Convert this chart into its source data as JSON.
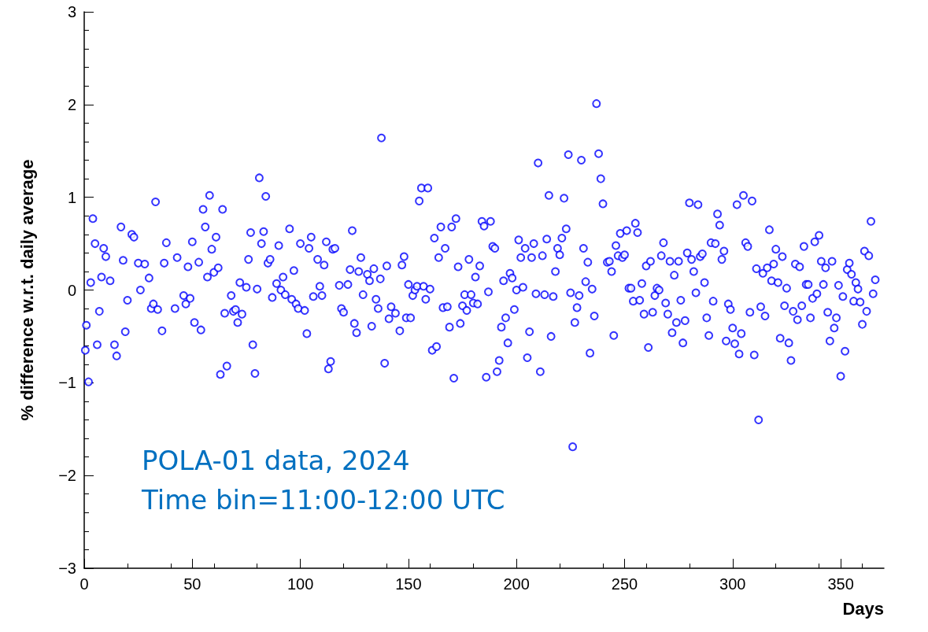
{
  "chart_data": {
    "type": "scatter",
    "xlabel": "Days",
    "ylabel": "% difference w.r.t. daily average",
    "annotations": [
      "POLA-01 data, 2024",
      "Time bin=11:00-12:00 UTC"
    ],
    "xlim": [
      0,
      370
    ],
    "xticks": [
      0,
      50,
      100,
      150,
      200,
      250,
      300,
      350
    ],
    "ylim": [
      -3,
      3
    ],
    "yticks": [
      -3,
      -2,
      -1,
      0,
      1,
      2,
      3
    ],
    "grid": false,
    "marker": "circle",
    "series": [
      {
        "color": "#0000ff",
        "x": [
          0.5,
          1,
          2,
          3,
          4,
          5,
          6,
          7,
          8,
          9,
          10,
          12,
          14,
          15,
          17,
          18,
          19,
          20,
          22,
          23,
          25,
          26,
          28,
          30,
          31,
          32,
          33,
          34,
          36,
          37,
          38,
          42,
          43,
          46,
          47,
          48,
          49,
          50,
          51,
          53,
          54,
          55,
          56,
          57,
          58,
          59,
          60,
          61,
          62,
          63,
          64,
          65,
          66,
          68,
          69,
          70,
          71,
          72,
          73,
          75,
          76,
          77,
          78,
          79,
          80,
          81,
          82,
          83,
          84,
          85,
          86,
          87,
          89,
          90,
          91,
          92,
          93,
          95,
          96,
          97,
          98,
          99,
          100,
          102,
          103,
          104,
          105,
          106,
          108,
          109,
          110,
          111,
          112,
          113,
          114,
          115,
          116,
          118,
          119,
          120,
          122,
          123,
          124,
          125,
          126,
          127,
          128,
          129,
          131,
          132,
          133,
          134,
          135,
          136,
          137,
          137.5,
          139,
          140,
          141,
          142,
          144,
          146,
          147,
          148,
          149,
          150,
          151,
          152,
          153,
          154,
          155,
          156,
          157,
          158,
          159,
          160,
          161,
          162,
          163,
          164,
          165,
          166,
          167,
          168,
          169,
          170,
          171,
          172,
          173,
          174,
          175,
          176,
          177,
          178,
          179,
          180,
          181,
          182,
          183,
          184,
          185,
          186,
          187,
          188,
          189,
          190,
          191,
          192,
          193,
          194,
          195,
          196,
          197,
          198,
          199,
          200,
          201,
          202,
          203,
          204,
          205,
          206,
          207,
          208,
          209,
          210,
          211,
          212,
          213,
          214,
          215,
          216,
          217,
          218,
          219,
          220,
          221,
          222,
          223,
          224,
          225,
          226,
          227,
          228,
          229,
          230,
          231,
          232,
          233,
          234,
          235,
          236,
          237,
          238,
          239,
          240,
          242,
          243,
          244,
          245,
          246,
          247,
          248,
          249,
          250,
          251,
          252,
          253,
          254,
          255,
          256,
          257,
          258,
          259,
          260,
          261,
          262,
          263,
          264,
          265,
          266,
          267,
          268,
          269,
          270,
          271,
          272,
          273,
          274,
          275,
          276,
          277,
          278,
          279,
          280,
          281,
          282,
          283,
          284,
          285,
          286,
          287,
          288,
          289,
          290,
          291,
          292,
          293,
          294,
          295,
          296,
          297,
          298,
          299,
          300,
          301,
          302,
          303,
          304,
          305,
          306,
          307,
          308,
          309,
          310,
          311,
          312,
          313,
          314,
          315,
          316,
          317,
          318,
          319,
          320,
          321,
          322,
          323,
          324,
          325,
          326,
          327,
          328,
          329,
          330,
          331,
          332,
          333,
          334,
          335,
          336,
          337,
          338,
          339,
          340,
          341,
          342,
          343,
          344,
          345,
          346,
          347,
          348,
          349,
          350,
          351,
          352,
          353,
          354,
          355,
          356,
          357,
          358,
          359,
          360,
          361,
          362,
          363,
          364,
          365,
          366
        ],
        "values": [
          -0.65,
          -0.38,
          -0.99,
          0.08,
          0.77,
          0.5,
          -0.59,
          -0.23,
          0.14,
          0.45,
          0.36,
          0.1,
          -0.59,
          -0.71,
          0.68,
          0.32,
          -0.45,
          -0.11,
          0.6,
          0.57,
          0.29,
          0.0,
          0.28,
          0.13,
          -0.2,
          -0.15,
          0.95,
          -0.21,
          -0.44,
          0.29,
          0.51,
          -0.2,
          0.35,
          -0.06,
          -0.15,
          0.25,
          -0.09,
          0.52,
          -0.35,
          0.3,
          -0.43,
          0.87,
          0.68,
          0.14,
          1.02,
          0.44,
          0.19,
          0.57,
          0.24,
          -0.91,
          0.87,
          -0.25,
          -0.82,
          -0.06,
          -0.23,
          -0.21,
          -0.35,
          0.08,
          -0.26,
          0.03,
          0.33,
          0.62,
          -0.59,
          -0.9,
          0.01,
          1.21,
          0.5,
          0.63,
          1.01,
          0.29,
          0.33,
          -0.08,
          0.07,
          0.48,
          0.0,
          0.14,
          -0.05,
          0.66,
          -0.1,
          0.21,
          -0.15,
          -0.2,
          0.5,
          -0.22,
          -0.47,
          0.45,
          0.57,
          -0.07,
          0.33,
          0.04,
          -0.06,
          0.27,
          0.52,
          -0.85,
          -0.77,
          0.44,
          0.45,
          0.05,
          -0.2,
          -0.24,
          0.06,
          0.22,
          0.64,
          -0.36,
          -0.46,
          0.2,
          0.35,
          -0.05,
          0.17,
          0.1,
          -0.39,
          0.23,
          -0.1,
          -0.2,
          0.12,
          1.64,
          -0.79,
          0.26,
          -0.31,
          -0.18,
          -0.25,
          -0.44,
          0.27,
          0.36,
          -0.3,
          0.06,
          -0.3,
          -0.06,
          0.0,
          0.04,
          0.96,
          1.1,
          0.04,
          -0.1,
          1.1,
          0.01,
          -0.65,
          0.56,
          -0.61,
          0.35,
          0.68,
          -0.19,
          0.45,
          -0.18,
          -0.4,
          0.68,
          -0.95,
          0.77,
          0.25,
          -0.36,
          -0.17,
          -0.05,
          -0.22,
          0.33,
          -0.05,
          -0.14,
          0.14,
          -0.15,
          0.26,
          0.74,
          0.69,
          -0.94,
          -0.02,
          0.74,
          0.47,
          0.45,
          -0.88,
          -0.76,
          -0.4,
          0.1,
          -0.3,
          -0.57,
          0.18,
          0.13,
          -0.21,
          0.0,
          0.54,
          0.35,
          0.03,
          0.45,
          -0.73,
          -0.45,
          0.35,
          0.5,
          -0.04,
          1.37,
          -0.88,
          0.37,
          -0.05,
          0.55,
          1.02,
          -0.5,
          -0.07,
          0.2,
          0.45,
          0.38,
          0.56,
          0.99,
          0.66,
          1.46,
          -0.03,
          -1.69,
          -0.35,
          -0.19,
          -0.06,
          1.4,
          0.45,
          0.09,
          0.3,
          -0.68,
          0.01,
          -0.28,
          2.01,
          1.47,
          1.2,
          0.93,
          0.3,
          0.31,
          0.2,
          -0.49,
          0.48,
          0.37,
          0.61,
          0.35,
          0.38,
          0.64,
          0.02,
          0.02,
          -0.12,
          0.72,
          0.62,
          -0.11,
          0.07,
          -0.26,
          0.26,
          -0.62,
          0.31,
          -0.24,
          -0.06,
          0.02,
          0.0,
          0.37,
          0.51,
          -0.14,
          -0.26,
          0.31,
          -0.46,
          0.16,
          -0.35,
          0.31,
          -0.11,
          -0.57,
          -0.33,
          0.4,
          0.94,
          0.33,
          0.2,
          -0.03,
          0.92,
          0.36,
          0.39,
          0.08,
          -0.3,
          -0.49,
          0.51,
          -0.12,
          0.5,
          0.82,
          0.7,
          0.33,
          0.42,
          -0.55,
          -0.15,
          -0.21,
          -0.41,
          -0.58,
          0.92,
          -0.69,
          -0.47,
          1.02,
          0.51,
          0.47,
          -0.24,
          0.96,
          -0.7,
          0.23,
          -1.4,
          -0.18,
          0.18,
          -0.28,
          0.24,
          0.65,
          0.1,
          0.28,
          0.44,
          0.08,
          -0.52,
          0.36,
          -0.17,
          0.02,
          -0.57,
          -0.76,
          -0.23,
          0.28,
          -0.32,
          0.25,
          -0.17,
          0.47,
          0.06,
          0.06,
          -0.3,
          -0.09,
          0.52,
          -0.04,
          0.59,
          0.31,
          0.06,
          0.24,
          -0.24,
          -0.55,
          0.31,
          -0.41,
          -0.3,
          0.05,
          -0.93,
          -0.07,
          -0.66,
          0.22,
          0.29,
          0.17,
          -0.12,
          0.08,
          0.01,
          -0.13,
          -0.37,
          0.42,
          -0.23,
          0.37,
          0.74,
          -0.04,
          0.11
        ]
      }
    ]
  }
}
